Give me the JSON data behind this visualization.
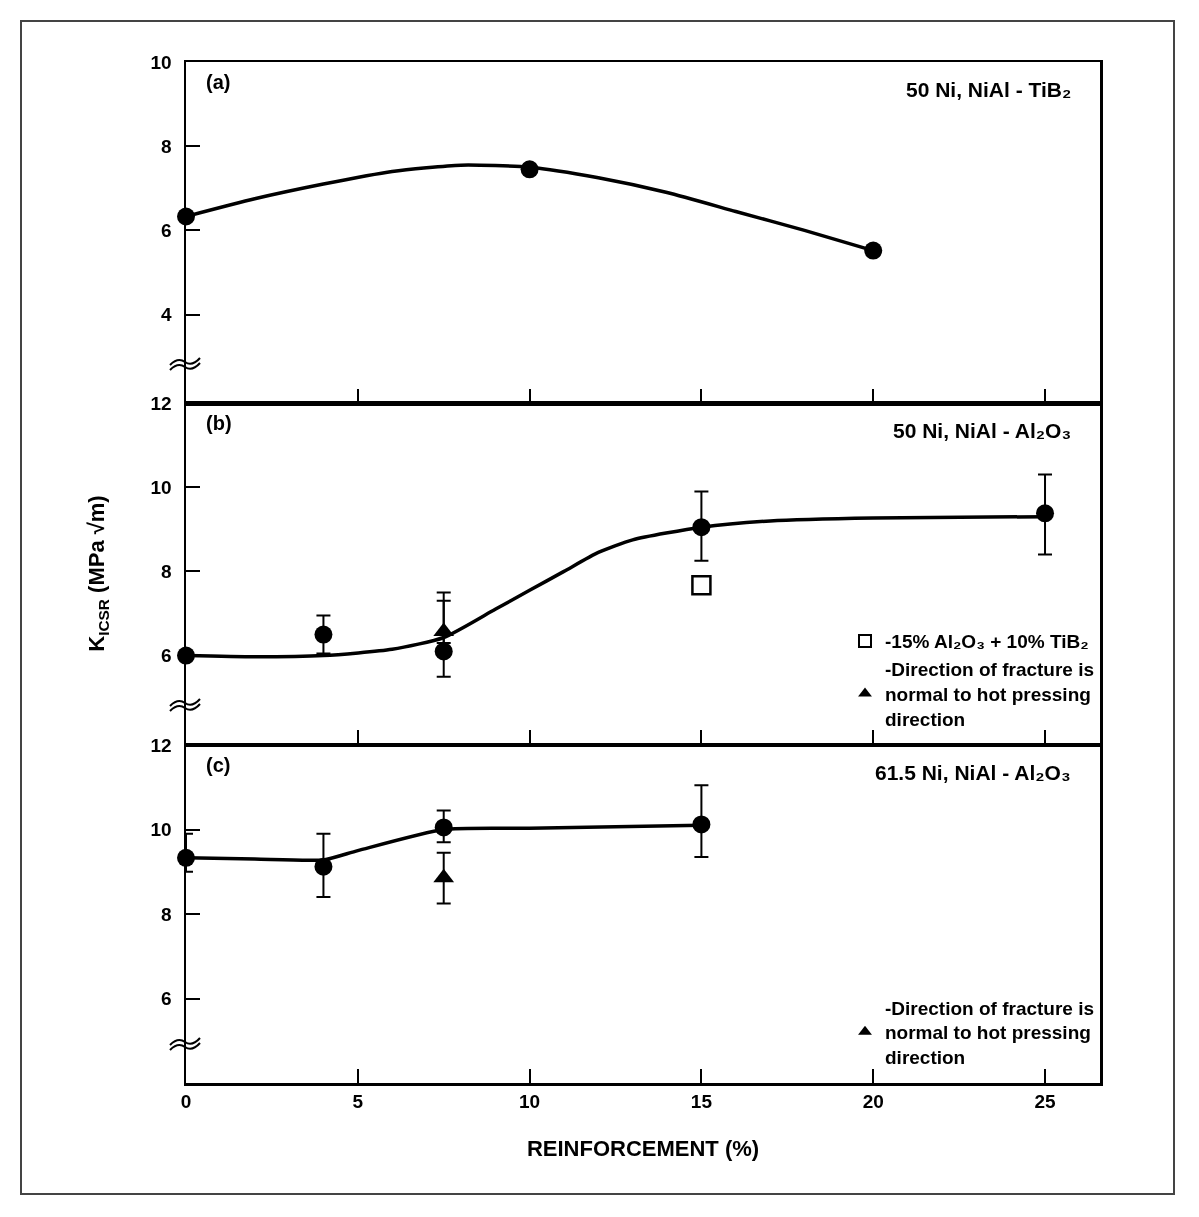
{
  "chart_data": [
    {
      "type": "scatter",
      "title": "50 Ni, NiAl - TiB₂",
      "annotations": [
        "(a)"
      ],
      "xlim": [
        0,
        26.6
      ],
      "xticks": [
        0,
        5,
        10,
        15,
        20,
        25
      ],
      "ylim": [
        1.9,
        10
      ],
      "yticks": [
        4,
        6,
        8,
        10
      ],
      "tick_labels": "y",
      "grid": false,
      "legend": false,
      "series": [
        {
          "type": "line",
          "color": "#000000",
          "marker": "none",
          "x": [
            0,
            2,
            4,
            6,
            8,
            10,
            12,
            14,
            16,
            18,
            20
          ],
          "values": [
            6.33,
            6.75,
            7.1,
            7.4,
            7.55,
            7.5,
            7.25,
            6.9,
            6.45,
            6.0,
            5.52
          ]
        },
        {
          "type": "scatter",
          "color": "#000000",
          "marker": "circle",
          "x": [
            0,
            10,
            20
          ],
          "values": [
            6.33,
            7.45,
            5.52
          ]
        }
      ]
    },
    {
      "type": "scatter",
      "title": "50 Ni, NiAl - Al₂O₃",
      "annotations": [
        "(b)"
      ],
      "ylabel": "K$_{ICSR}$ (MPa √m)",
      "xlim": [
        0,
        26.6
      ],
      "xticks": [
        0,
        5,
        10,
        15,
        20,
        25
      ],
      "ylim": [
        3.9,
        12
      ],
      "yticks": [
        6,
        8,
        10,
        12
      ],
      "tick_labels": "y",
      "grid": false,
      "legend": "bottom right",
      "series": [
        {
          "type": "line",
          "color": "#000000",
          "marker": "none",
          "x": [
            0,
            2,
            4,
            6,
            7.5,
            9,
            10,
            11,
            12,
            13,
            15,
            17,
            20,
            25
          ],
          "values": [
            6.0,
            5.97,
            6.0,
            6.15,
            6.43,
            7.1,
            7.55,
            8.0,
            8.45,
            8.75,
            9.05,
            9.2,
            9.27,
            9.3
          ]
        },
        {
          "type": "scatter",
          "color": "#000000",
          "marker": "circle",
          "x": [
            0,
            4,
            7.5,
            15,
            25
          ],
          "values": [
            6.0,
            6.5,
            6.1,
            9.05,
            9.38
          ],
          "errors": [
            null,
            0.45,
            [
              5.5,
              7.3
            ],
            [
              8.25,
              9.9
            ],
            [
              8.4,
              10.3
            ]
          ]
        },
        {
          "type": "scatter",
          "name": "-15% Al₂O₃ + 10% TiB₂",
          "color": "#000000",
          "marker": "square",
          "x": [
            15
          ],
          "values": [
            7.67
          ]
        },
        {
          "type": "scatter",
          "name": "-Direction of fracture is normal to hot pressing direction",
          "color": "#000000",
          "marker": "triangle",
          "x": [
            7.5
          ],
          "values": [
            6.57
          ],
          "errors": [
            [
              6.3,
              7.5
            ]
          ]
        }
      ]
    },
    {
      "type": "scatter",
      "title": "61.5 Ni, NiAl - Al₂O₃",
      "annotations": [
        "(c)"
      ],
      "xlabel": "REINFORCEMENT (%)",
      "xlim": [
        0,
        26.6
      ],
      "xticks": [
        0,
        5,
        10,
        15,
        20,
        25
      ],
      "ylim": [
        4.0,
        12
      ],
      "yticks": [
        6,
        8,
        10,
        12
      ],
      "grid": false,
      "legend": "bottom right",
      "series": [
        {
          "type": "line",
          "color": "#000000",
          "marker": "none",
          "x": [
            0,
            2,
            4,
            5,
            7.5,
            10,
            15
          ],
          "values": [
            9.33,
            9.3,
            9.28,
            9.5,
            10.0,
            10.03,
            10.1
          ]
        },
        {
          "type": "scatter",
          "color": "#000000",
          "marker": "circle",
          "x": [
            0,
            4,
            7.5,
            15
          ],
          "values": [
            9.33,
            9.12,
            10.05,
            10.12
          ],
          "errors": [
            [
              9.0,
              9.9
            ],
            [
              8.4,
              9.9
            ],
            [
              9.7,
              10.45
            ],
            [
              9.35,
              11.05
            ]
          ]
        },
        {
          "type": "scatter",
          "name": "-Direction of fracture is normal to hot pressing direction",
          "color": "#000000",
          "marker": "triangle",
          "x": [
            7.5
          ],
          "values": [
            8.86
          ],
          "errors": [
            [
              8.25,
              9.45
            ]
          ]
        }
      ]
    }
  ]
}
